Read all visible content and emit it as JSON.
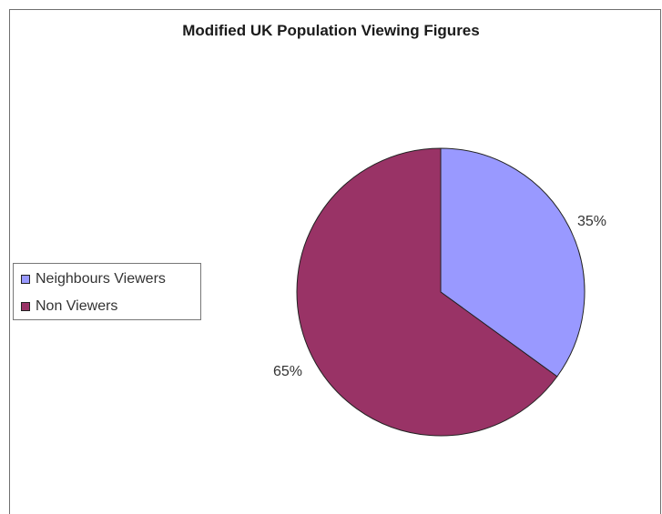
{
  "chart_data": {
    "type": "pie",
    "title": "Modified UK Population Viewing Figures",
    "slices": [
      {
        "label": "Neighbours Viewers",
        "value": 35,
        "display": "35%",
        "color": "#9999ff"
      },
      {
        "label": "Non Viewers",
        "value": 65,
        "display": "65%",
        "color": "#993366"
      }
    ],
    "legend_position": "left"
  }
}
